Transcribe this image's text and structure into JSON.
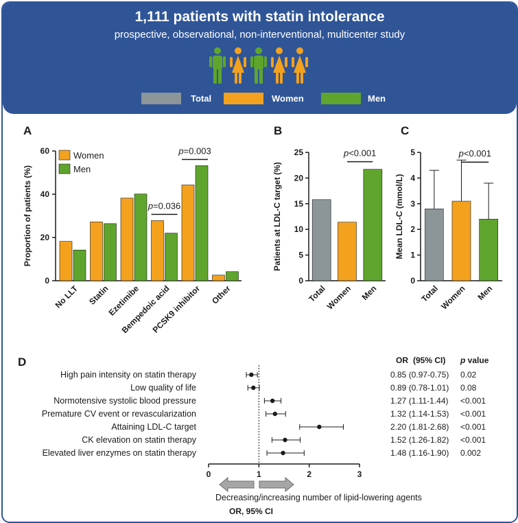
{
  "header": {
    "title": "1,111 patients with statin intolerance",
    "subtitle": "prospective, observational, non-interventional, multicenter study",
    "legend": [
      {
        "label": "Total",
        "color": "#8c9698"
      },
      {
        "label": "Women",
        "color": "#f4a11e"
      },
      {
        "label": "Men",
        "color": "#5fa52d"
      }
    ],
    "people": [
      "man",
      "woman",
      "man",
      "woman",
      "woman"
    ]
  },
  "colors": {
    "total": "#8c9698",
    "women": "#f4a11e",
    "men": "#5fa52d",
    "border": "#2f5597"
  },
  "chart_data": [
    {
      "panel": "A",
      "type": "bar",
      "ylabel": "Proportion of patients (%)",
      "ylim": [
        0,
        60
      ],
      "yticks": [
        0,
        20,
        40,
        60
      ],
      "categories": [
        "No LLT",
        "Statin",
        "Ezetimibe",
        "Bempedoic acid",
        "PCSK9 inhibitor",
        "Other"
      ],
      "series": [
        {
          "name": "Women",
          "values": [
            18.2,
            27.2,
            38.2,
            27.8,
            44.3,
            2.6
          ]
        },
        {
          "name": "Men",
          "values": [
            14.2,
            26.4,
            40.1,
            22.0,
            53.2,
            4.2
          ]
        }
      ],
      "annotations": [
        {
          "category": "Bempedoic acid",
          "p_symbol": "p",
          "p_text": "=0.036"
        },
        {
          "category": "PCSK9 inhibitor",
          "p_symbol": "p",
          "p_text": "=0.003"
        }
      ]
    },
    {
      "panel": "B",
      "type": "bar",
      "ylabel": "Patients at LDL-C target (%)",
      "ylim": [
        0,
        25
      ],
      "yticks": [
        0,
        5,
        10,
        15,
        20,
        25
      ],
      "categories": [
        "Total",
        "Women",
        "Men"
      ],
      "values": [
        15.8,
        11.4,
        21.7
      ],
      "annotation": {
        "between": [
          "Women",
          "Men"
        ],
        "p_symbol": "p",
        "p_text": "<0.001"
      }
    },
    {
      "panel": "C",
      "type": "bar",
      "ylabel": "Mean LDL-C (mmol/L)",
      "ylim": [
        0,
        5
      ],
      "yticks": [
        0,
        1,
        2,
        3,
        4,
        5
      ],
      "categories": [
        "Total",
        "Women",
        "Men"
      ],
      "values": [
        2.8,
        3.1,
        2.4
      ],
      "error_upper": [
        4.3,
        4.7,
        3.8
      ],
      "annotation": {
        "between": [
          "Women",
          "Men"
        ],
        "p_symbol": "p",
        "p_text": "<0.001"
      }
    },
    {
      "panel": "D",
      "type": "forest",
      "xlim": [
        0,
        3
      ],
      "xticks": [
        0,
        1,
        2,
        3
      ],
      "xlabel": "OR, 95% CI",
      "arrow_caption": "Decreasing/increasing number of lipid-lowering agents",
      "column_headers": {
        "or": "OR",
        "ci": "(95% CI)",
        "p_symbol": "p",
        "p": " value"
      },
      "rows": [
        {
          "label": "High pain intensity on statin therapy",
          "or": 0.85,
          "lo": 0.75,
          "hi": 0.97,
          "or_text": "0.85 (0.97-0.75)",
          "p": "0.02"
        },
        {
          "label": "Low quality of life",
          "or": 0.89,
          "lo": 0.78,
          "hi": 1.01,
          "or_text": "0.89 (0.78-1.01)",
          "p": "0.08"
        },
        {
          "label": "Normotensive systolic blood pressure",
          "or": 1.27,
          "lo": 1.11,
          "hi": 1.44,
          "or_text": "1.27 (1.11-1.44)",
          "p": "<0.001"
        },
        {
          "label": "Premature CV event or revascularization",
          "or": 1.32,
          "lo": 1.14,
          "hi": 1.53,
          "or_text": "1.32 (1.14-1.53)",
          "p": "<0.001"
        },
        {
          "label": "Attaining LDL-C target",
          "or": 2.2,
          "lo": 1.81,
          "hi": 2.68,
          "or_text": "2.20 (1.81-2.68)",
          "p": "<0.001"
        },
        {
          "label": "CK elevation on statin therapy",
          "or": 1.52,
          "lo": 1.26,
          "hi": 1.82,
          "or_text": "1.52 (1.26-1.82)",
          "p": "<0.001"
        },
        {
          "label": "Elevated liver enzymes on statin therapy",
          "or": 1.48,
          "lo": 1.16,
          "hi": 1.9,
          "or_text": "1.48 (1.16-1.90)",
          "p": "0.002"
        }
      ]
    }
  ]
}
